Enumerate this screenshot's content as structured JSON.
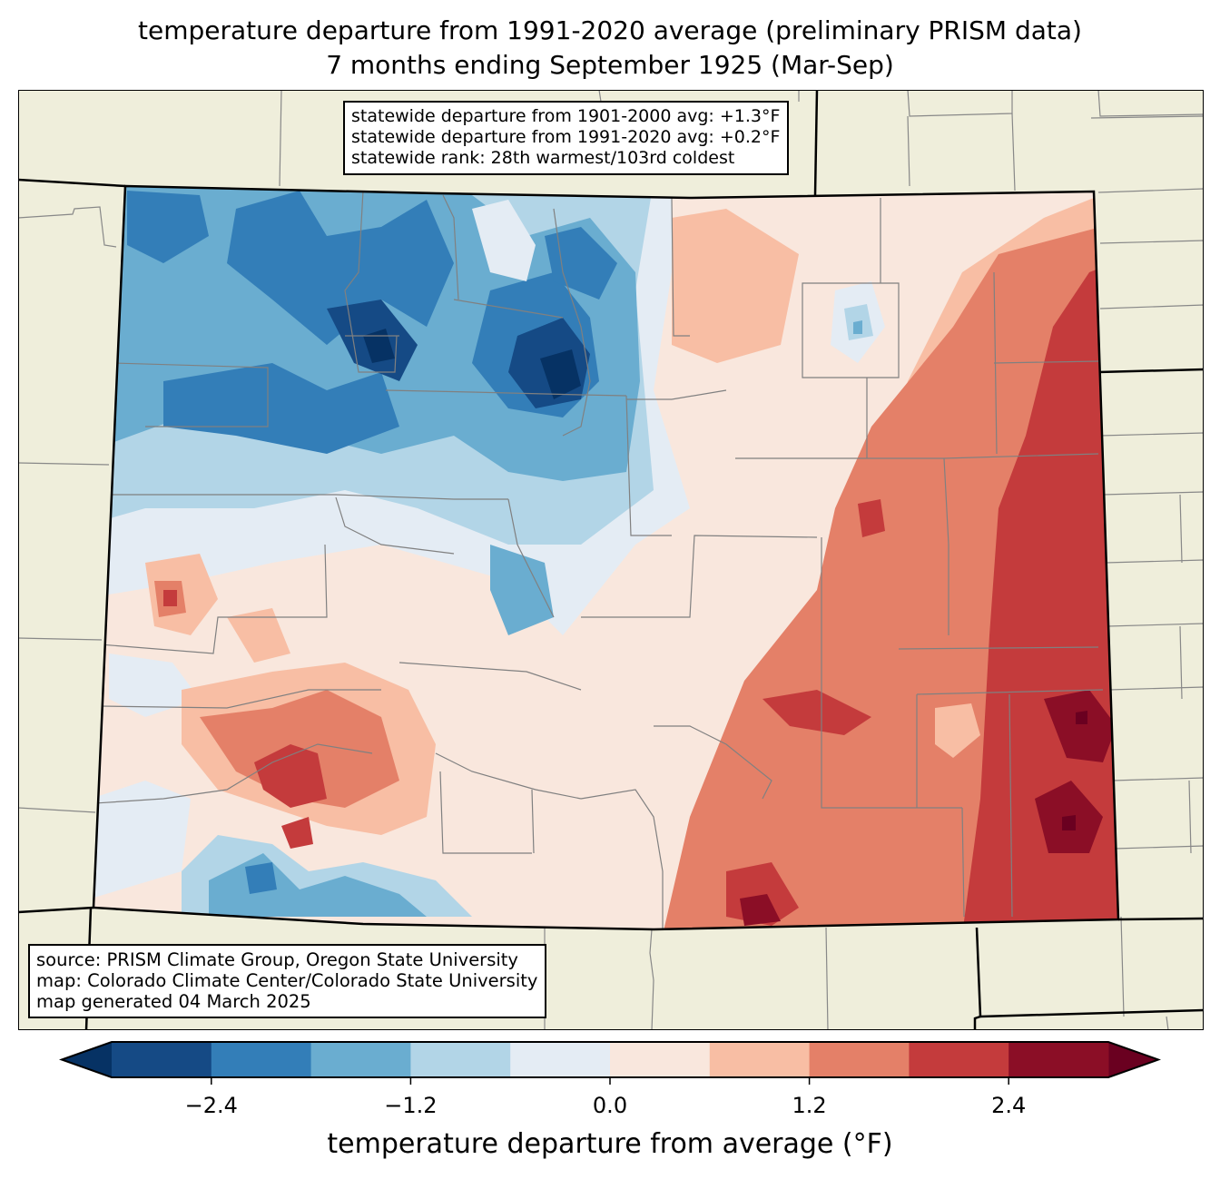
{
  "title": {
    "line1": "temperature departure from 1991-2020 average (preliminary PRISM data)",
    "line2": "7 months ending September 1925 (Mar-Sep)"
  },
  "stats_box": {
    "line1": "statewide departure from 1901-2000 avg: +1.3°F",
    "line2": "statewide departure from 1991-2020 avg: +0.2°F",
    "line3": "statewide rank: 28th warmest/103rd coldest"
  },
  "source_box": {
    "line1": "source: PRISM Climate Group, Oregon State University",
    "line2": "map: Colorado Climate Center/Colorado State University",
    "line3": "map generated 04 March 2025"
  },
  "map": {
    "region": "Colorado",
    "background_color": "#efeedb",
    "state_border_color": "#000000",
    "county_border_color": "#808080",
    "pattern": "cooler than average (blue) across northwest and north-central mountains and a pocket in the south-central San Luis area; warmer than average (red) across the eastern plains, strongest in the southeast corner, and in the southwest San Juan region"
  },
  "chart_data": {
    "type": "heatmap",
    "title": "temperature departure from 1991-2020 average (preliminary PRISM data) — 7 months ending September 1925 (Mar-Sep)",
    "colorbar": {
      "label": "temperature departure from average (°F)",
      "levels": [
        -3.0,
        -2.4,
        -1.8,
        -1.2,
        -0.6,
        0.0,
        0.6,
        1.2,
        1.8,
        2.4,
        3.0
      ],
      "extend": "both",
      "colors": [
        "#154a85",
        "#337eb8",
        "#6aadd0",
        "#b2d5e7",
        "#e4ecf4",
        "#f9e7dd",
        "#f8bea4",
        "#e48068",
        "#c43b3c",
        "#8b0e26"
      ],
      "under_color": "#063264",
      "over_color": "#6a0020",
      "ticks": [
        -2.4,
        -1.2,
        0.0,
        1.2,
        2.4
      ],
      "tick_labels": [
        "−2.4",
        "−1.2",
        "0.0",
        "1.2",
        "2.4"
      ]
    },
    "statewide": {
      "departure_1901_2000_F": 1.3,
      "departure_1991_2020_F": 0.2,
      "rank_warmest": 28,
      "rank_coldest": 103
    }
  }
}
